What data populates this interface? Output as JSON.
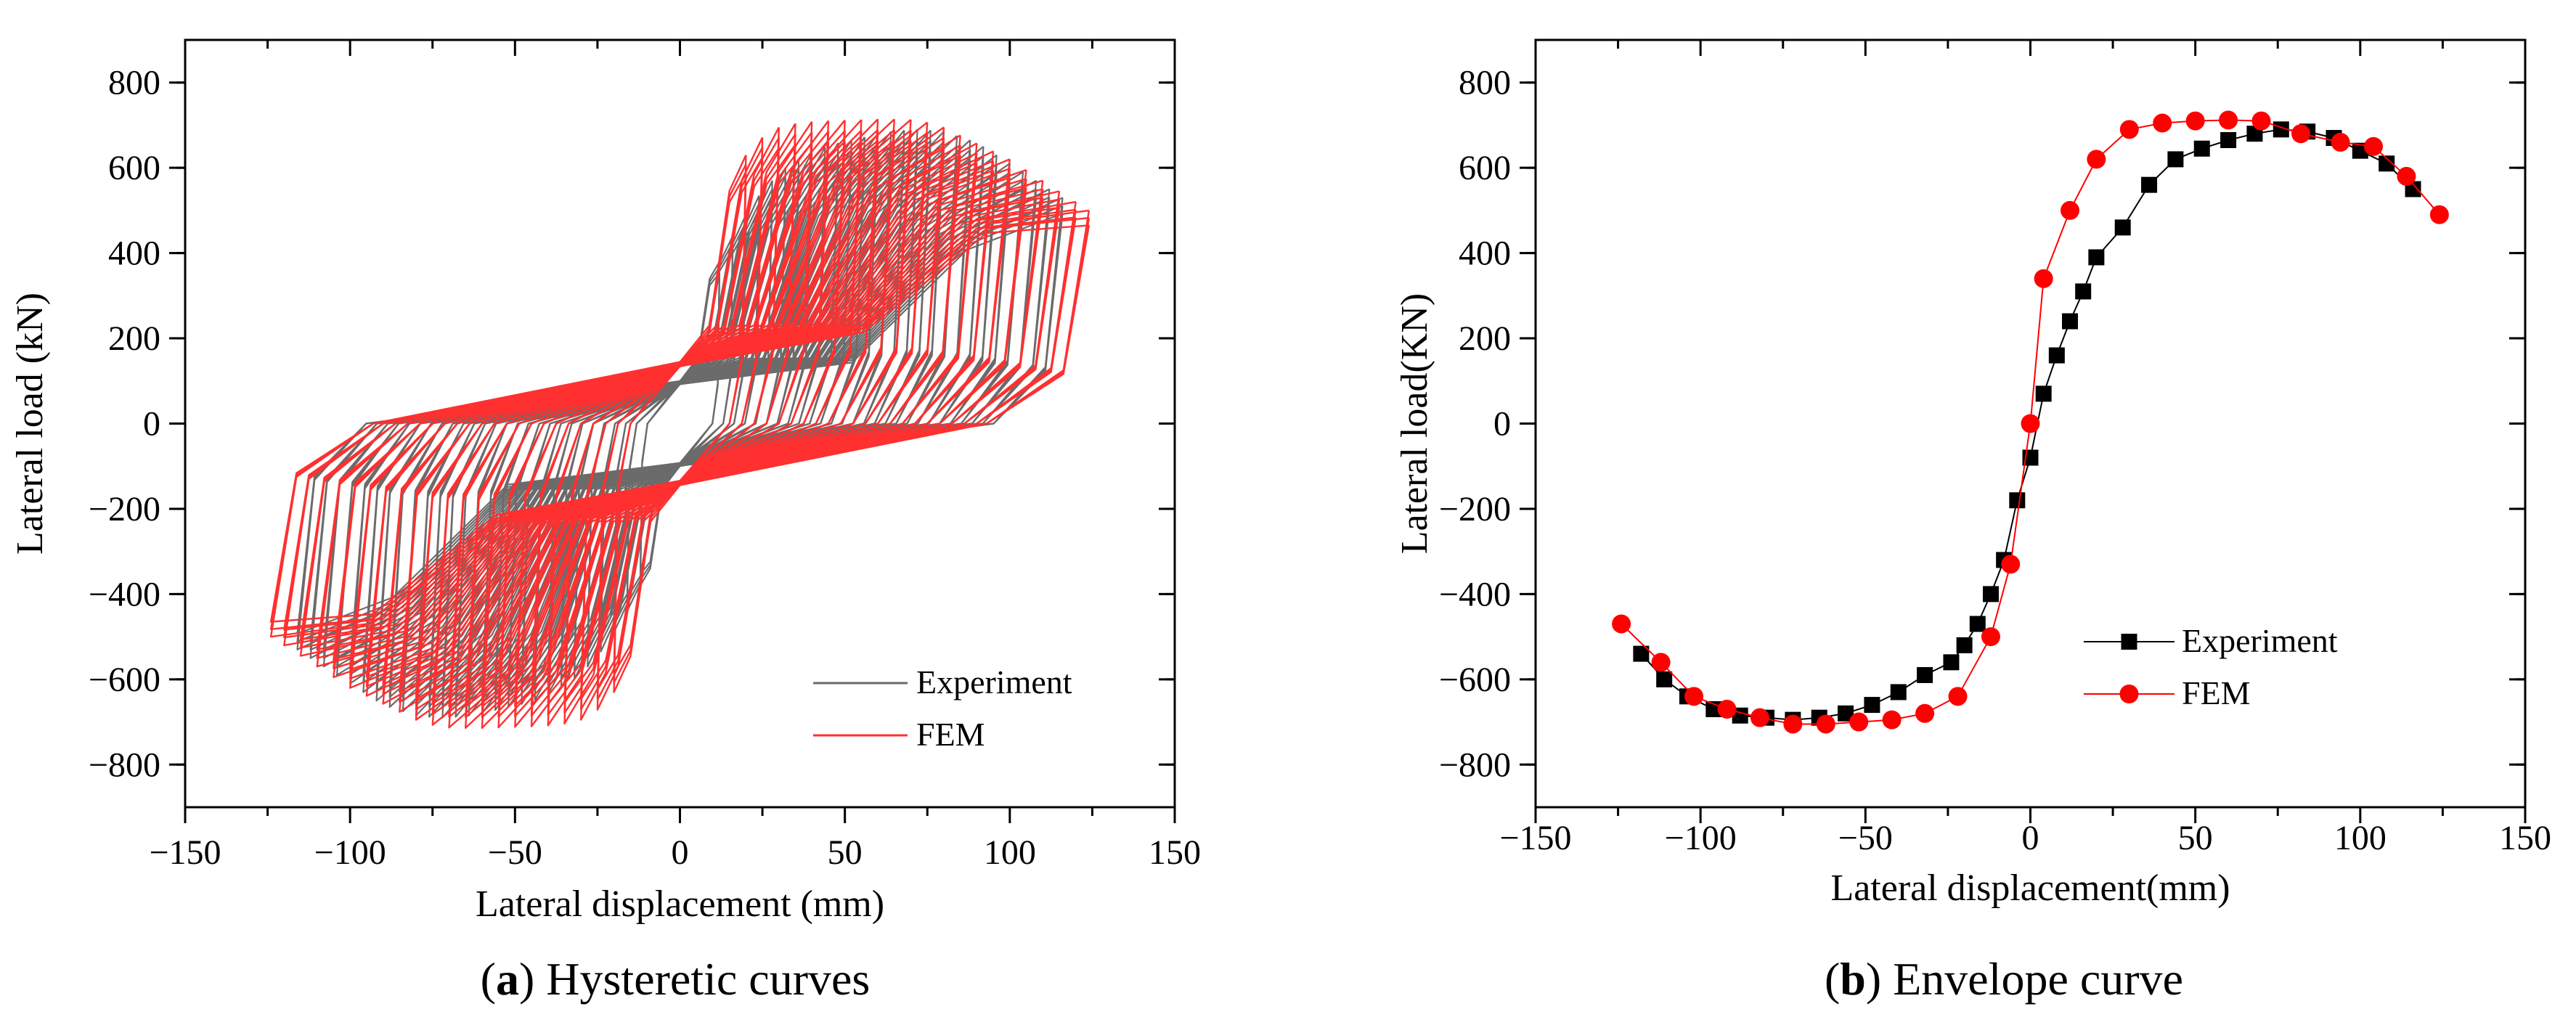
{
  "figure": {
    "caption_a_letter": "a",
    "caption_a_text": " Hysteretic curves",
    "caption_b_letter": "b",
    "caption_b_text": " Envelope curve"
  },
  "colors": {
    "experiment_line": "#6b6b6b",
    "fem_line": "#ff3030",
    "experiment_marker": "#000000",
    "fem_marker": "#ff0000",
    "axis": "#000000"
  },
  "chart_data": [
    {
      "id": "a",
      "type": "line",
      "title": "Hysteretic curves",
      "xlabel": "Lateral displacement (mm)",
      "ylabel": "Lateral load (kN)",
      "xlim": [
        -150,
        150
      ],
      "ylim": [
        -900,
        900
      ],
      "xticks": [
        -150,
        -100,
        -50,
        0,
        50,
        100,
        150
      ],
      "yticks": [
        -800,
        -600,
        -400,
        -200,
        0,
        200,
        400,
        600,
        800
      ],
      "xtick_labels": [
        "−150",
        "−100",
        "−50",
        "0",
        "50",
        "100",
        "150"
      ],
      "ytick_labels": [
        "−800",
        "−600",
        "−400",
        "−200",
        "0",
        "200",
        "400",
        "600",
        "800"
      ],
      "grid": false,
      "legend_position": "bottom-right",
      "series": [
        {
          "name": "Experiment",
          "style": "hysteresis",
          "amplitudes": [
            12,
            16,
            20,
            24,
            28,
            32,
            36,
            40,
            44,
            48,
            52,
            56,
            60,
            64,
            68,
            72,
            76,
            80,
            84,
            88,
            92,
            96,
            100,
            104,
            108,
            112,
            116
          ],
          "envelope": {
            "x": [
              0,
              4,
              8,
              12,
              16,
              20,
              24,
              28,
              32,
              36,
              40,
              44,
              48,
              52,
              56,
              60,
              64,
              68,
              72,
              76,
              80,
              84,
              88,
              92,
              96,
              100,
              104,
              108,
              112,
              116
            ],
            "y": [
              0,
              165,
              300,
              380,
              440,
              490,
              535,
              570,
              600,
              620,
              635,
              648,
              658,
              665,
              672,
              680,
              685,
              688,
              690,
              688,
              685,
              675,
              665,
              650,
              630,
              610,
              590,
              570,
              550,
              530
            ]
          },
          "residual_fraction": 0.18,
          "pinch_load": 280
        },
        {
          "name": "FEM",
          "style": "hysteresis",
          "amplitudes": [
            20,
            25,
            30,
            35,
            40,
            45,
            50,
            55,
            60,
            65,
            70,
            75,
            80,
            85,
            90,
            95,
            100,
            105,
            110,
            115,
            120,
            124
          ],
          "envelope": {
            "x": [
              0,
              4,
              8,
              12,
              16,
              20,
              24,
              28,
              32,
              36,
              40,
              44,
              48,
              52,
              56,
              60,
              64,
              68,
              72,
              76,
              80,
              84,
              88,
              92,
              96,
              100,
              104,
              108,
              112,
              116,
              120,
              124
            ],
            "y": [
              0,
              340,
              440,
              520,
              590,
              630,
              665,
              690,
              700,
              705,
              708,
              710,
              711,
              712,
              713,
              714,
              714,
              714,
              712,
              705,
              695,
              680,
              665,
              650,
              635,
              620,
              600,
              580,
              560,
              540,
              520,
              500
            ]
          },
          "residual_fraction": 0.25,
          "pinch_load": 420
        }
      ]
    },
    {
      "id": "b",
      "type": "line",
      "title": "Envelope curve",
      "xlabel": "Lateral displacement(mm)",
      "ylabel": "Lateral load(KN)",
      "xlim": [
        -150,
        150
      ],
      "ylim": [
        -900,
        900
      ],
      "xticks": [
        -150,
        -100,
        -50,
        0,
        50,
        100,
        150
      ],
      "yticks": [
        -800,
        -600,
        -400,
        -200,
        0,
        200,
        400,
        600,
        800
      ],
      "xtick_labels": [
        "−150",
        "−100",
        "−50",
        "0",
        "50",
        "100",
        "150"
      ],
      "ytick_labels": [
        "−800",
        "−600",
        "−400",
        "−200",
        "0",
        "200",
        "400",
        "600",
        "800"
      ],
      "grid": false,
      "legend_position": "lower-center",
      "series": [
        {
          "name": "Experiment",
          "marker": "square",
          "x": [
            -118,
            -111,
            -104,
            -96,
            -88,
            -80,
            -72,
            -64,
            -56,
            -48,
            -40,
            -32,
            -24,
            -20,
            -16,
            -12,
            -8,
            -4,
            0,
            4,
            8,
            12,
            16,
            20,
            28,
            36,
            44,
            52,
            60,
            68,
            76,
            84,
            92,
            100,
            108,
            116
          ],
          "y": [
            -540,
            -600,
            -640,
            -670,
            -685,
            -690,
            -695,
            -690,
            -680,
            -660,
            -630,
            -590,
            -560,
            -520,
            -470,
            -400,
            -320,
            -180,
            -80,
            70,
            160,
            240,
            310,
            390,
            460,
            560,
            620,
            645,
            665,
            680,
            690,
            685,
            670,
            640,
            610,
            550
          ]
        },
        {
          "name": "FEM",
          "marker": "circle",
          "x": [
            -124,
            -112,
            -102,
            -92,
            -82,
            -72,
            -62,
            -52,
            -42,
            -32,
            -22,
            -12,
            -6,
            0,
            4,
            12,
            20,
            30,
            40,
            50,
            60,
            70,
            82,
            94,
            104,
            114,
            124
          ],
          "y": [
            -470,
            -560,
            -640,
            -670,
            -690,
            -705,
            -705,
            -700,
            -695,
            -680,
            -640,
            -500,
            -330,
            0,
            340,
            500,
            620,
            690,
            705,
            710,
            712,
            710,
            680,
            660,
            650,
            580,
            490
          ]
        }
      ]
    }
  ]
}
